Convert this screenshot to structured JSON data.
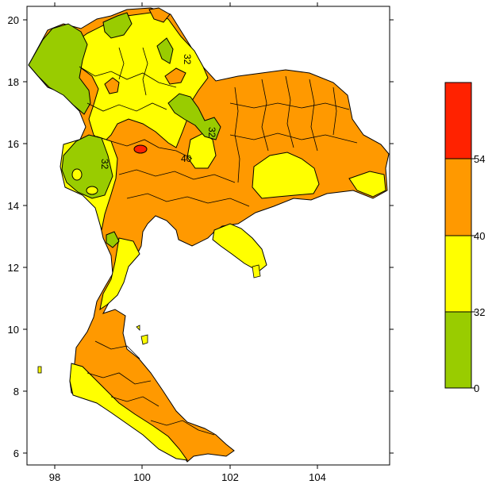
{
  "map": {
    "x_ticks": [
      "98",
      "100",
      "102",
      "104"
    ],
    "y_ticks": [
      "20",
      "18",
      "16",
      "14",
      "12",
      "10",
      "8",
      "6"
    ],
    "lon_range": [
      97.4,
      105.8
    ],
    "lat_range": [
      5.8,
      20.4
    ],
    "contour_labels": [
      "32",
      "32",
      "32",
      "40"
    ]
  },
  "legend": {
    "bins": [
      {
        "from": "54",
        "to": "",
        "color": "#ff2200"
      },
      {
        "from": "40",
        "to": "54",
        "color": "#ff9900"
      },
      {
        "from": "32",
        "to": "40",
        "color": "#ffff00"
      },
      {
        "from": "0",
        "to": "32",
        "color": "#99cc00"
      }
    ],
    "labels": [
      "54",
      "40",
      "32",
      "0"
    ]
  },
  "colors": {
    "red": "#ff2200",
    "orange": "#ff9900",
    "yellow": "#ffff00",
    "green": "#99cc00",
    "border": "#000000"
  }
}
